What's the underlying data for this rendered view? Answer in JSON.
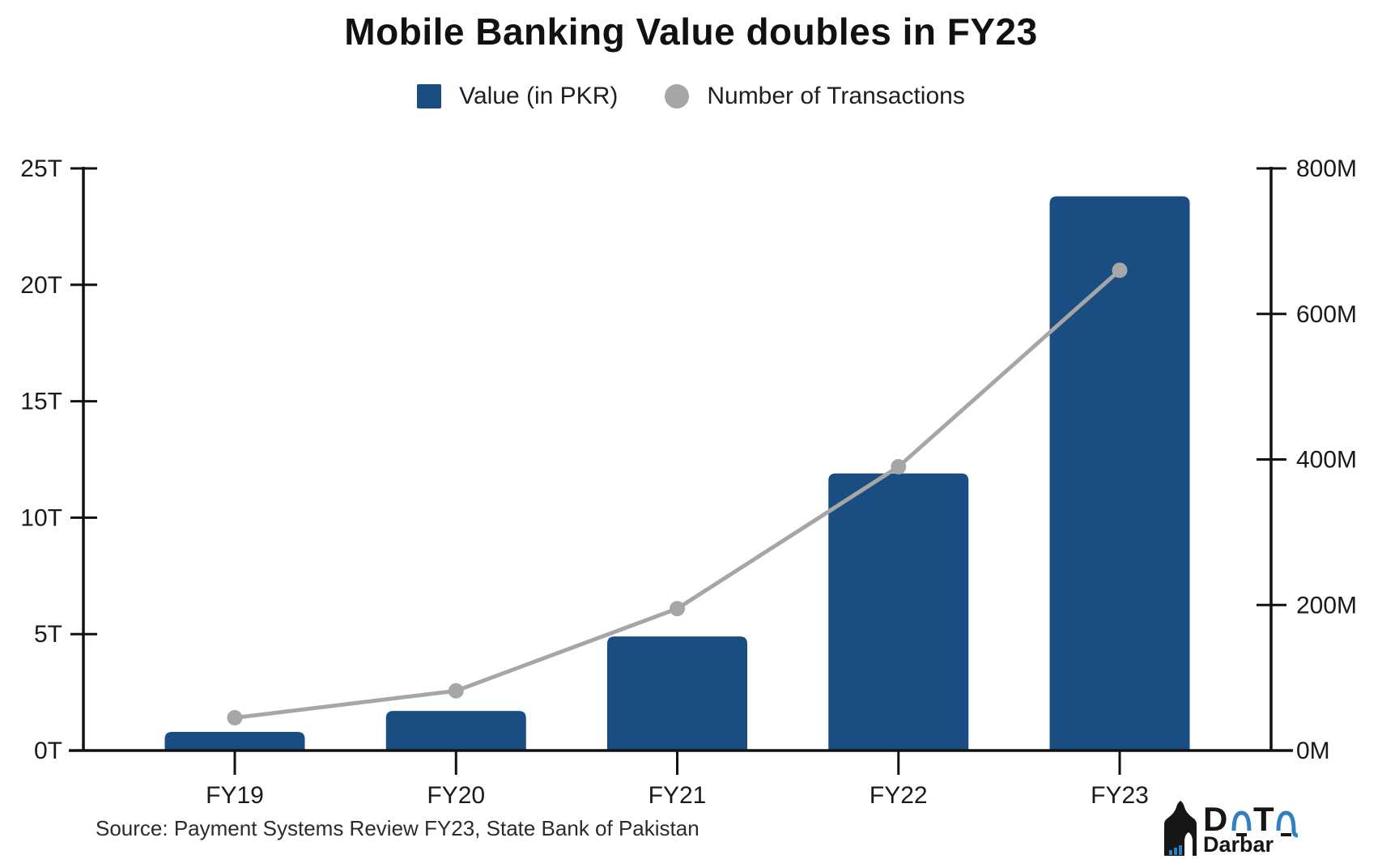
{
  "title": "Mobile Banking Value doubles in FY23",
  "legend": [
    {
      "label": "Value (in PKR)",
      "marker": "square",
      "color": "#1A4E82"
    },
    {
      "label": "Number of Transactions",
      "marker": "circle",
      "color": "#A6A6A6"
    }
  ],
  "source": "Source: Payment Systems Review FY23, State Bank of Pakistan",
  "logo": {
    "word_top": "DaTa",
    "letter_d": "D",
    "letter_t": "T",
    "word_bottom": "Darbar",
    "blue": "#2F7FC1",
    "black": "#161616"
  },
  "colors": {
    "bar": "#1A4E82",
    "line": "#A6A6A6",
    "axis": "#111111",
    "tick_label": "#1a1a1a"
  },
  "chart_data": {
    "type": "bar",
    "secondary_type": "line",
    "title": "Mobile Banking Value doubles in FY23",
    "categories": [
      "FY19",
      "FY20",
      "FY21",
      "FY22",
      "FY23"
    ],
    "series": [
      {
        "name": "Value (in PKR)",
        "type": "bar",
        "axis": "left",
        "unit": "trillion PKR",
        "values": [
          0.8,
          1.7,
          4.9,
          11.9,
          23.8
        ]
      },
      {
        "name": "Number of Transactions",
        "type": "line",
        "axis": "right",
        "unit": "million transactions",
        "values": [
          45,
          82,
          195,
          390,
          660
        ]
      }
    ],
    "left_axis": {
      "min": 0,
      "max": 25,
      "tick_step": 5,
      "tick_labels": [
        "0T",
        "5T",
        "10T",
        "15T",
        "20T",
        "25T"
      ]
    },
    "right_axis": {
      "min": 0,
      "max": 800,
      "tick_step": 200,
      "tick_labels": [
        "0M",
        "200M",
        "400M",
        "600M",
        "800M"
      ]
    },
    "grid": false,
    "legend_position": "top"
  }
}
